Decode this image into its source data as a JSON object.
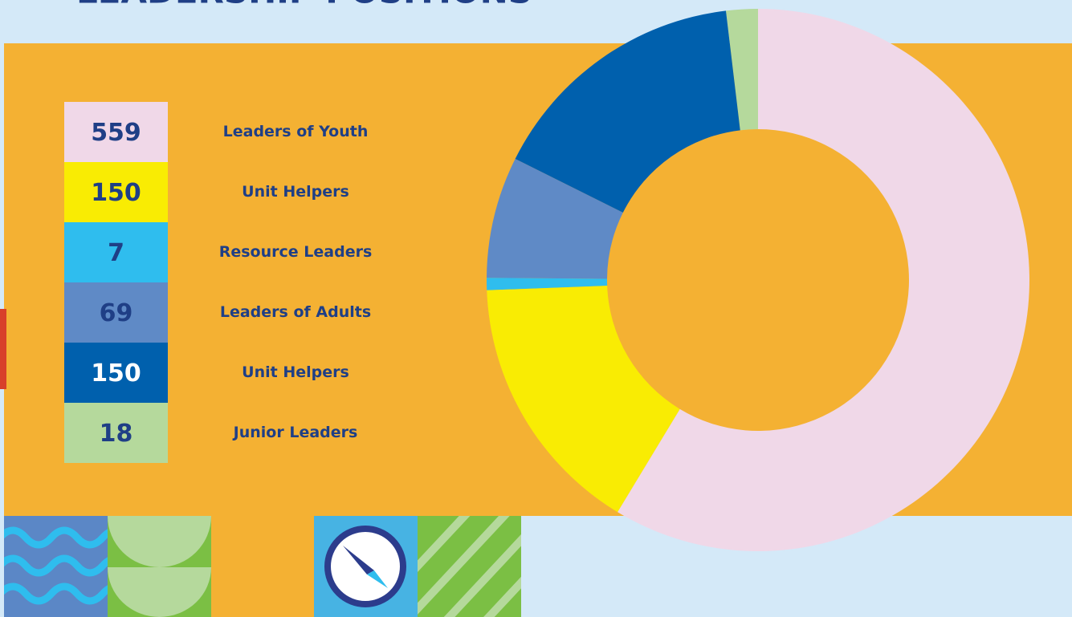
{
  "chart_data": {
    "type": "donut",
    "title": "LEADERSHIP POSITIONS",
    "categories": [
      "Leaders of Youth",
      "Unit Helpers",
      "Resource Leaders",
      "Leaders of Adults",
      "Unit Helpers",
      "Junior Leaders"
    ],
    "values": [
      559,
      150,
      7,
      69,
      150,
      18
    ],
    "colors": [
      "#f0d8e8",
      "#f9ec03",
      "#2fbdee",
      "#5f8ac6",
      "#0060ad",
      "#b5d99c"
    ]
  }
}
